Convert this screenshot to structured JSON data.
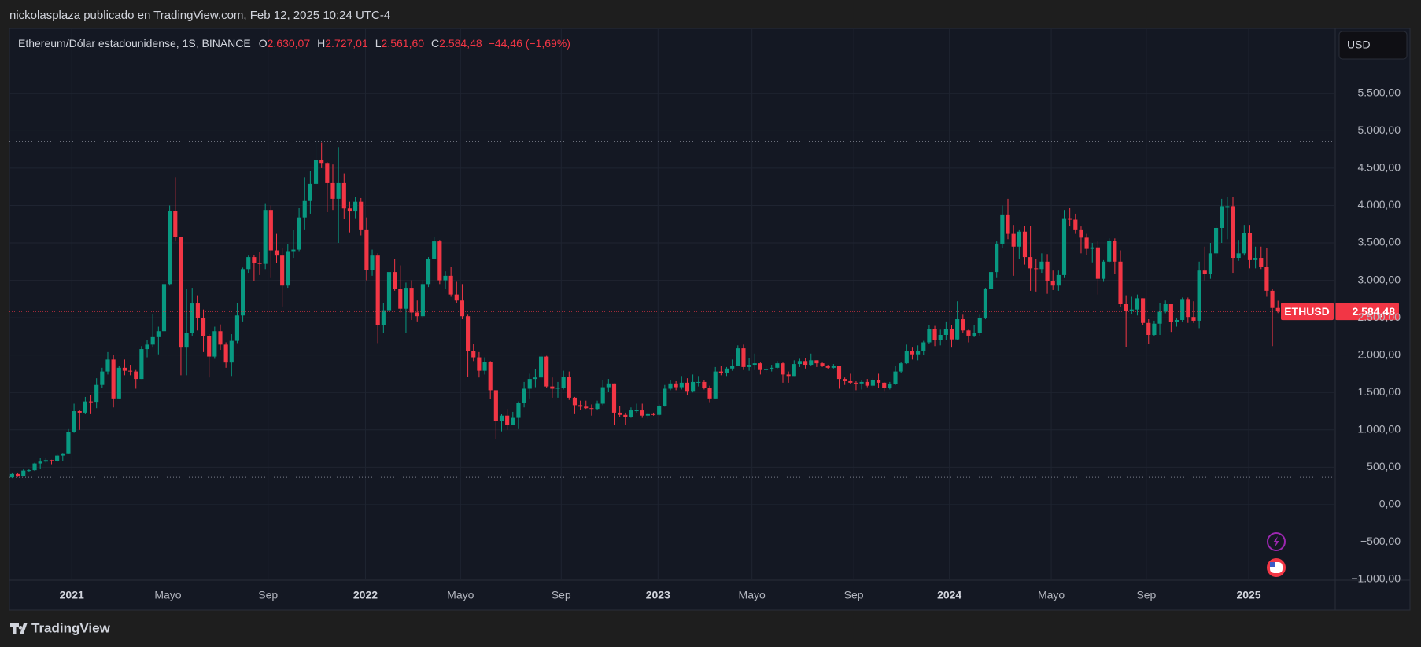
{
  "header": {
    "publisher": "nickolasplaza publicado en TradingView.com, Feb 12, 2025 10:24 UTC-4"
  },
  "chart_data": {
    "type": "candlestick",
    "title": "Ethereum/Dólar estadounidense, 1S, BINANCE",
    "legend": [
      {
        "key": "O",
        "value": "2.630,07"
      },
      {
        "key": "H",
        "value": "2.727,01"
      },
      {
        "key": "L",
        "value": "2.561,60"
      },
      {
        "key": "C",
        "value": "2.584,48"
      }
    ],
    "change": "−44,46 (−1,69%)",
    "currency": "USD",
    "symbol": "ETHUSD",
    "last_price_label": "2.584,48",
    "up_color": "#089981",
    "down_color": "#f23645",
    "open": [
      365,
      410,
      385,
      455,
      460,
      550,
      575,
      595,
      585,
      655,
      685,
      975,
      1250,
      1230,
      1380,
      1375,
      1600,
      1780,
      1940,
      1420,
      1830,
      1790,
      1780,
      1680,
      2080,
      2140,
      2240,
      2320,
      2950,
      3930,
      3580,
      2100,
      2300,
      2690,
      2500,
      2250,
      1980,
      2320,
      2140,
      1900,
      2190,
      2530,
      3150,
      3310,
      3230,
      3220,
      3940,
      3400,
      3330,
      2930,
      3390,
      3410,
      3840,
      4060,
      4290,
      4610,
      4570,
      4300,
      4090,
      4300,
      3960,
      3920,
      4050,
      3680,
      3140,
      3330,
      2400,
      2600,
      3110,
      2880,
      2620,
      2900,
      2570,
      2520,
      2950,
      3290,
      3520,
      3000,
      3060,
      2810,
      2730,
      2520,
      2050,
      1970,
      1790,
      1910,
      1530,
      1120,
      1190,
      1070,
      1160,
      1360,
      1550,
      1680,
      1700,
      1980,
      1580,
      1550,
      1560,
      1710,
      1430,
      1330,
      1310,
      1290,
      1280,
      1350,
      1570,
      1620,
      1230,
      1200,
      1170,
      1260,
      1260,
      1190,
      1220,
      1200,
      1320,
      1550,
      1620,
      1570,
      1630,
      1520,
      1640,
      1640,
      1560,
      1420,
      1780,
      1760,
      1820,
      1860,
      2090,
      1840,
      1870,
      1890,
      1800,
      1810,
      1830,
      1890,
      1740,
      1720,
      1880,
      1920,
      1870,
      1930,
      1890,
      1860,
      1830,
      1850,
      1680,
      1650,
      1630,
      1620,
      1640,
      1590,
      1670,
      1630,
      1560,
      1610,
      1780,
      1890,
      2050,
      2010,
      2060,
      2170,
      2350,
      2200,
      2270,
      2350,
      2210,
      2480,
      2330,
      2260,
      2300,
      2500,
      2880,
      3110,
      3490,
      3880,
      3620,
      3450,
      3650,
      3310,
      3160,
      3150,
      3250,
      2990,
      2930,
      3070,
      3830,
      3810,
      3680,
      3570,
      3420,
      3440,
      3020,
      3250,
      3530,
      3250,
      2680,
      2590,
      2610,
      2760,
      2430,
      2270,
      2420,
      2580,
      2680,
      2440,
      2470,
      2750,
      2510,
      2460,
      3130,
      3080,
      3360,
      3700,
      3990,
      3990,
      3300,
      3360,
      3630,
      3270,
      3300,
      3180,
      2860,
      2630.07
    ],
    "high": [
      420,
      420,
      470,
      480,
      560,
      620,
      620,
      600,
      670,
      690,
      1010,
      1350,
      1260,
      1440,
      1470,
      1690,
      1830,
      2040,
      2000,
      1860,
      1940,
      1870,
      1800,
      2120,
      2200,
      2550,
      2380,
      2980,
      4000,
      4380,
      3580,
      2880,
      2900,
      2800,
      2610,
      2280,
      2380,
      2410,
      2170,
      2280,
      2700,
      3170,
      3330,
      3340,
      3380,
      4030,
      4000,
      3620,
      3430,
      3480,
      3670,
      3970,
      4380,
      4460,
      4870,
      4840,
      4580,
      4550,
      4780,
      4430,
      4050,
      4110,
      4100,
      3840,
      3410,
      3360,
      2700,
      3180,
      3280,
      3200,
      2970,
      3000,
      2730,
      3000,
      3310,
      3580,
      3540,
      3120,
      3180,
      2980,
      2950,
      2540,
      2150,
      2040,
      1970,
      1920,
      1530,
      1210,
      1280,
      1240,
      1380,
      1640,
      1750,
      1810,
      2030,
      1990,
      1700,
      1640,
      1790,
      1780,
      1440,
      1390,
      1390,
      1340,
      1390,
      1670,
      1680,
      1620,
      1320,
      1230,
      1300,
      1350,
      1350,
      1230,
      1230,
      1340,
      1600,
      1670,
      1650,
      1720,
      1690,
      1740,
      1720,
      1670,
      1590,
      1840,
      1850,
      1840,
      1940,
      2130,
      2140,
      1960,
      2020,
      1900,
      1850,
      1870,
      1920,
      1900,
      1780,
      1930,
      1950,
      1960,
      2020,
      1930,
      1900,
      1870,
      1880,
      1860,
      1700,
      1750,
      1650,
      1660,
      1680,
      1690,
      1750,
      1640,
      1640,
      1860,
      1910,
      2140,
      2100,
      2130,
      2190,
      2400,
      2390,
      2340,
      2450,
      2400,
      2720,
      2540,
      2340,
      2400,
      2540,
      2900,
      3130,
      3520,
      4000,
      4090,
      3740,
      3680,
      3730,
      3730,
      3280,
      3360,
      3350,
      3130,
      3130,
      3940,
      3970,
      3890,
      3720,
      3620,
      3500,
      3530,
      3270,
      3560,
      3560,
      3400,
      2800,
      2780,
      2810,
      2760,
      2480,
      2460,
      2700,
      2730,
      2680,
      2490,
      2770,
      2770,
      2720,
      3250,
      3450,
      3500,
      3740,
      4090,
      4110,
      4110,
      3540,
      3740,
      3740,
      3450,
      3450,
      3430,
      2890,
      2727.01
    ],
    "low": [
      355,
      370,
      375,
      430,
      450,
      480,
      560,
      540,
      570,
      580,
      680,
      960,
      1000,
      1210,
      1220,
      1290,
      1560,
      1740,
      1300,
      1420,
      1730,
      1730,
      1550,
      1680,
      1970,
      2100,
      2010,
      2300,
      2930,
      3520,
      1730,
      1730,
      2260,
      2330,
      2040,
      1700,
      1950,
      2070,
      1830,
      1720,
      2160,
      2450,
      3100,
      2990,
      3070,
      3150,
      3040,
      3230,
      2650,
      2900,
      3300,
      3390,
      3680,
      3890,
      4280,
      4500,
      3910,
      3940,
      3500,
      3820,
      3640,
      3830,
      3600,
      3000,
      3060,
      2160,
      2300,
      2580,
      2860,
      2570,
      2300,
      2470,
      2450,
      2500,
      2910,
      3290,
      2950,
      2890,
      2780,
      2700,
      2480,
      1710,
      1920,
      1700,
      1740,
      1410,
      880,
      980,
      1000,
      1070,
      1010,
      1300,
      1420,
      1570,
      1670,
      1560,
      1430,
      1430,
      1540,
      1400,
      1220,
      1270,
      1280,
      1190,
      1260,
      1330,
      1510,
      1070,
      1170,
      1070,
      1160,
      1230,
      1160,
      1150,
      1190,
      1190,
      1310,
      1530,
      1530,
      1540,
      1460,
      1500,
      1580,
      1540,
      1370,
      1420,
      1730,
      1720,
      1790,
      1850,
      1800,
      1790,
      1800,
      1740,
      1760,
      1780,
      1820,
      1630,
      1630,
      1720,
      1840,
      1820,
      1860,
      1840,
      1840,
      1810,
      1820,
      1550,
      1600,
      1610,
      1530,
      1540,
      1570,
      1570,
      1560,
      1520,
      1540,
      1600,
      1760,
      1880,
      1940,
      1930,
      2000,
      2150,
      2120,
      2130,
      2200,
      2100,
      2200,
      2300,
      2170,
      2240,
      2260,
      2480,
      2880,
      3040,
      3430,
      3550,
      3060,
      3290,
      3210,
      2860,
      2850,
      3100,
      2820,
      2870,
      2860,
      3040,
      3720,
      3620,
      3360,
      3340,
      3240,
      2810,
      2980,
      3240,
      3090,
      2640,
      2110,
      2550,
      2530,
      2400,
      2150,
      2250,
      2270,
      2560,
      2310,
      2380,
      2440,
      2430,
      2430,
      2360,
      3000,
      3020,
      3310,
      3500,
      3550,
      3100,
      3260,
      3330,
      3160,
      3160,
      3150,
      2780,
      2120,
      2561.6
    ],
    "close": [
      410,
      385,
      455,
      460,
      550,
      575,
      595,
      585,
      655,
      685,
      975,
      1250,
      1230,
      1380,
      1375,
      1600,
      1780,
      1940,
      1420,
      1830,
      1790,
      1780,
      1680,
      2080,
      2140,
      2240,
      2320,
      2950,
      3930,
      3580,
      2100,
      2300,
      2690,
      2500,
      2250,
      1980,
      2320,
      2140,
      1900,
      2190,
      2530,
      3150,
      3310,
      3230,
      3220,
      3940,
      3400,
      3330,
      2930,
      3390,
      3410,
      3840,
      4060,
      4290,
      4610,
      4570,
      4300,
      4090,
      4300,
      3960,
      3920,
      4050,
      3680,
      3140,
      3330,
      2400,
      2600,
      3110,
      2880,
      2620,
      2900,
      2570,
      2520,
      2950,
      3290,
      3520,
      3000,
      3060,
      2810,
      2730,
      2520,
      2050,
      1970,
      1790,
      1910,
      1530,
      1120,
      1190,
      1070,
      1160,
      1360,
      1550,
      1680,
      1700,
      1980,
      1580,
      1550,
      1560,
      1710,
      1430,
      1330,
      1310,
      1290,
      1280,
      1350,
      1570,
      1620,
      1230,
      1200,
      1170,
      1260,
      1260,
      1190,
      1220,
      1200,
      1320,
      1550,
      1620,
      1570,
      1630,
      1520,
      1640,
      1640,
      1560,
      1420,
      1780,
      1760,
      1820,
      1860,
      2090,
      1840,
      1870,
      1890,
      1800,
      1810,
      1830,
      1890,
      1740,
      1720,
      1880,
      1920,
      1870,
      1930,
      1890,
      1860,
      1830,
      1850,
      1680,
      1650,
      1630,
      1620,
      1640,
      1590,
      1670,
      1630,
      1560,
      1610,
      1780,
      1890,
      2050,
      2010,
      2060,
      2170,
      2350,
      2200,
      2270,
      2350,
      2210,
      2480,
      2330,
      2260,
      2300,
      2500,
      2880,
      3110,
      3490,
      3880,
      3620,
      3450,
      3650,
      3310,
      3160,
      3150,
      3250,
      2990,
      2930,
      3070,
      3830,
      3810,
      3680,
      3570,
      3420,
      3440,
      3020,
      3250,
      3530,
      3250,
      2680,
      2590,
      2610,
      2760,
      2430,
      2270,
      2420,
      2580,
      2680,
      2440,
      2470,
      2750,
      2510,
      2460,
      3130,
      3080,
      3360,
      3700,
      3990,
      3990,
      3300,
      3360,
      3630,
      3270,
      3300,
      3180,
      2860,
      2630,
      2584.48
    ],
    "hlines": [
      4860,
      365
    ],
    "xlim": [
      -0.2,
      234.9
    ],
    "xticks": [
      {
        "value": 10.6,
        "label": "2021"
      },
      {
        "value": 27.7,
        "label": "Mayo"
      },
      {
        "value": 45.5,
        "label": "Sep"
      },
      {
        "value": 62.8,
        "label": "2022"
      },
      {
        "value": 79.7,
        "label": "Mayo"
      },
      {
        "value": 97.6,
        "label": "Sep"
      },
      {
        "value": 114.8,
        "label": "2023"
      },
      {
        "value": 131.5,
        "label": "Mayo"
      },
      {
        "value": 149.6,
        "label": "Sep"
      },
      {
        "value": 166.6,
        "label": "2024"
      },
      {
        "value": 184.7,
        "label": "Mayo"
      },
      {
        "value": 201.6,
        "label": "Sep"
      },
      {
        "value": 219.8,
        "label": "2025"
      }
    ],
    "ylim": [
      -1000,
      6360
    ],
    "yticks": [
      {
        "value": -1000,
        "label": "−1.000,00"
      },
      {
        "value": -500,
        "label": "−500,00"
      },
      {
        "value": 0,
        "label": "0,00"
      },
      {
        "value": 500,
        "label": "500,00"
      },
      {
        "value": 1000,
        "label": "1.000,00"
      },
      {
        "value": 1500,
        "label": "1.500,00"
      },
      {
        "value": 2000,
        "label": "2.000,00"
      },
      {
        "value": 2500,
        "label": "2.500,00"
      },
      {
        "value": 3000,
        "label": "3.000,00"
      },
      {
        "value": 3500,
        "label": "3.500,00"
      },
      {
        "value": 4000,
        "label": "4.000,00"
      },
      {
        "value": 4500,
        "label": "4.500,00"
      },
      {
        "value": 5000,
        "label": "5.000,00"
      },
      {
        "value": 5500,
        "label": "5.500,00"
      }
    ],
    "grid": true
  },
  "footer": {
    "brand": "TradingView"
  }
}
